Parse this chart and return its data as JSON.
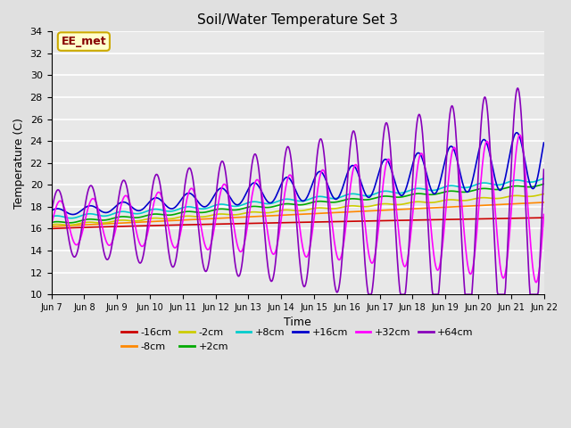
{
  "title": "Soil/Water Temperature Set 3",
  "xlabel": "Time",
  "ylabel": "Temperature (C)",
  "ylim": [
    10,
    34
  ],
  "yticks": [
    10,
    12,
    14,
    16,
    18,
    20,
    22,
    24,
    26,
    28,
    30,
    32,
    34
  ],
  "background_color": "#e0e0e0",
  "plot_background": "#e8e8e8",
  "annotation_text": "EE_met",
  "annotation_bg": "#ffffcc",
  "annotation_border": "#ccaa00",
  "annotation_text_color": "#880000",
  "series": {
    "-16cm": {
      "color": "#cc0000",
      "lw": 1.2
    },
    "-8cm": {
      "color": "#ff8800",
      "lw": 1.2
    },
    "-2cm": {
      "color": "#cccc00",
      "lw": 1.2
    },
    "+2cm": {
      "color": "#00aa00",
      "lw": 1.2
    },
    "+8cm": {
      "color": "#00cccc",
      "lw": 1.2
    },
    "+16cm": {
      "color": "#0000cc",
      "lw": 1.2
    },
    "+32cm": {
      "color": "#ff00ff",
      "lw": 1.2
    },
    "+64cm": {
      "color": "#8800bb",
      "lw": 1.2
    }
  },
  "legend_order": [
    "-16cm",
    "-8cm",
    "-2cm",
    "+2cm",
    "+8cm",
    "+16cm",
    "+32cm",
    "+64cm"
  ],
  "n_days": 15,
  "start_day": 7
}
